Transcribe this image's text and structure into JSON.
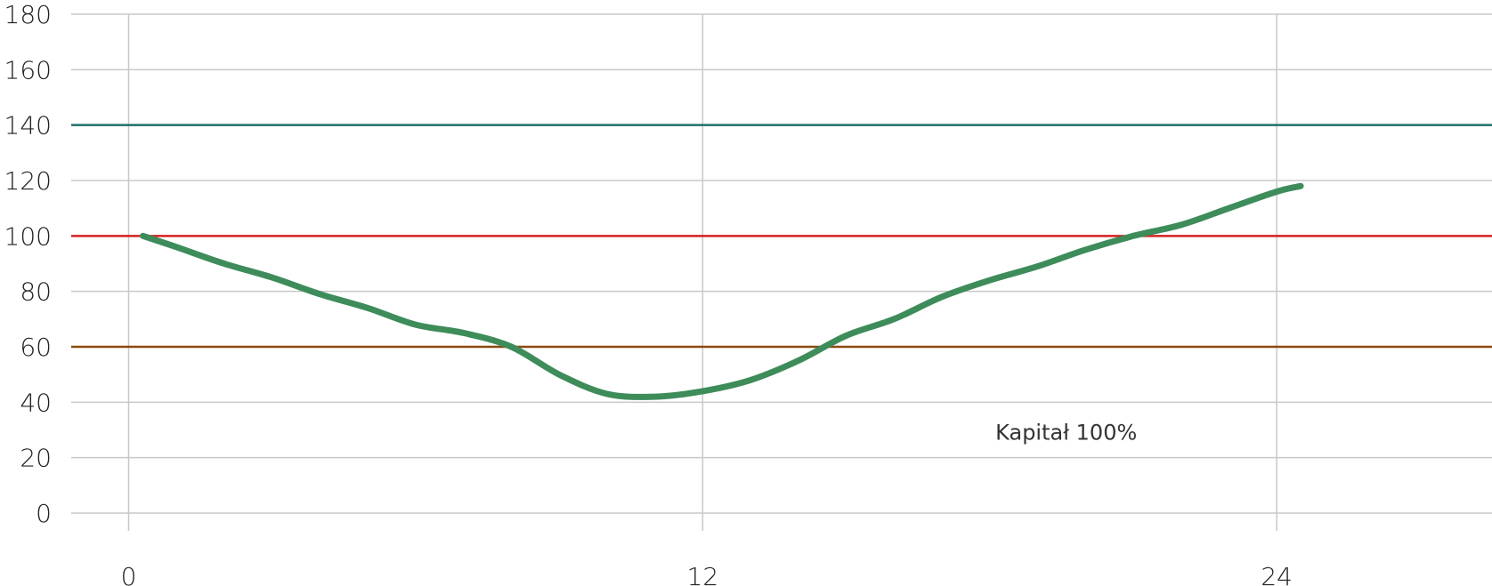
{
  "chart_data": {
    "type": "line",
    "title": "",
    "xlabel": "",
    "ylabel": "",
    "xlim": [
      -1.2,
      28.5
    ],
    "ylim": [
      0,
      180
    ],
    "x_ticks": [
      0,
      12,
      24
    ],
    "y_ticks": [
      0,
      20,
      40,
      60,
      80,
      100,
      120,
      140,
      160,
      180
    ],
    "grid": true,
    "reference_lines": [
      {
        "y": 140,
        "color": "#1f6f6a"
      },
      {
        "y": 100,
        "color": "#d62020"
      },
      {
        "y": 60,
        "color": "#8a4a0f"
      }
    ],
    "series": [
      {
        "color": "#3d8c5a",
        "x": [
          0.3,
          1,
          2,
          3,
          4,
          5,
          6,
          7,
          8,
          9,
          10,
          11,
          12,
          13,
          14,
          15,
          16,
          17,
          18,
          19,
          20,
          21,
          22,
          23,
          24,
          24.5
        ],
        "y": [
          100,
          96,
          90,
          85,
          79,
          74,
          68,
          65,
          60,
          50,
          43,
          42,
          44,
          48,
          55,
          64,
          70,
          78,
          84,
          89,
          95,
          100,
          104,
          110,
          116,
          118
        ]
      }
    ],
    "annotations": [
      {
        "text": "Kapitał 100%",
        "x": 19.6,
        "y": 29
      }
    ]
  }
}
